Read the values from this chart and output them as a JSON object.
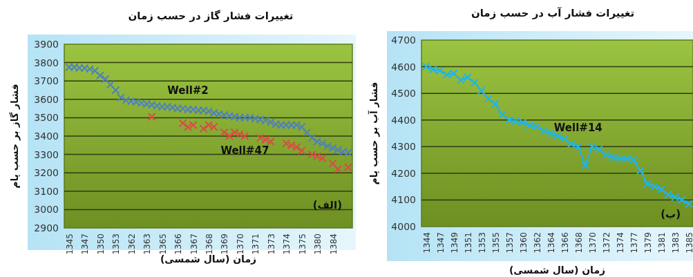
{
  "chart_data": [
    {
      "type": "scatter",
      "title": "تغییرات فشار گاز در حسب زمان",
      "xlabel": "زمان (سال شمسی)",
      "ylabel": "فشار گاز بر حسب پام",
      "categories": [
        "1345",
        null,
        null,
        "1347",
        null,
        null,
        "1350",
        null,
        null,
        "1353",
        null,
        null,
        "1362",
        null,
        null,
        "1363",
        null,
        null,
        "1365",
        null,
        null,
        "1366",
        null,
        null,
        "1367",
        null,
        null,
        "1368",
        null,
        null,
        "1369",
        null,
        null,
        "1370",
        null,
        null,
        "1371",
        null,
        null,
        "1373",
        null,
        null,
        "1374",
        null,
        null,
        "1375",
        null,
        null,
        "1380",
        null,
        null,
        "1384",
        null,
        null,
        null
      ],
      "ylim": [
        2900,
        3900
      ],
      "yticks": [
        2900,
        3000,
        3100,
        3200,
        3300,
        3400,
        3500,
        3600,
        3700,
        3800,
        3900
      ],
      "grid": "y",
      "series": [
        {
          "name": "Well#2",
          "color": "#4f81bd",
          "marker": "cross",
          "values": [
            3775,
            3775,
            3770,
            3770,
            3765,
            3755,
            3730,
            3710,
            3680,
            3650,
            3610,
            3595,
            3590,
            3585,
            3580,
            3575,
            3570,
            3565,
            3560,
            3560,
            3555,
            3550,
            3550,
            3545,
            3545,
            3540,
            3540,
            3535,
            3525,
            3520,
            3515,
            3510,
            3505,
            3500,
            3500,
            3500,
            3495,
            3490,
            3485,
            3475,
            3465,
            3460,
            3460,
            3460,
            3460,
            3450,
            3420,
            3390,
            3370,
            3360,
            3345,
            3335,
            3325,
            3315,
            3310
          ]
        },
        {
          "name": "Well#47",
          "color": "#e04848",
          "marker": "cross",
          "values": [
            null,
            null,
            null,
            null,
            null,
            null,
            null,
            null,
            null,
            null,
            null,
            null,
            null,
            null,
            null,
            null,
            3505,
            null,
            null,
            null,
            null,
            null,
            3470,
            3450,
            3460,
            null,
            3440,
            3460,
            3450,
            null,
            3420,
            3400,
            3420,
            3410,
            3400,
            null,
            null,
            3390,
            3380,
            3370,
            null,
            null,
            3360,
            3350,
            3340,
            3320,
            null,
            3300,
            3290,
            3280,
            null,
            3250,
            3220,
            null,
            3230
          ]
        }
      ],
      "annotations": [
        "(الف)"
      ]
    },
    {
      "type": "line",
      "title": "تغییرات فشار آب در حسب زمان",
      "xlabel": "زمان (سال شمسی)",
      "ylabel": "فشار آب بر حسب پام",
      "categories": [
        "1344",
        null,
        "1347",
        null,
        "1349",
        null,
        "1351",
        null,
        "1353",
        null,
        "1355",
        null,
        "1357",
        null,
        "1360",
        null,
        "1362",
        null,
        "1364",
        null,
        "1366",
        null,
        "1368",
        null,
        "1370",
        null,
        "1372",
        null,
        "1374",
        null,
        "1377",
        null,
        "1379",
        null,
        "1381",
        null,
        "1383",
        null,
        "1385"
      ],
      "ylim": [
        4000,
        4700
      ],
      "yticks": [
        4000,
        4100,
        4200,
        4300,
        4400,
        4500,
        4600,
        4700
      ],
      "grid": "y",
      "marker": "cross",
      "series": [
        {
          "name": "Well#14",
          "color": "#1fb4ec",
          "values": [
            4600,
            4590,
            4585,
            4570,
            4575,
            4550,
            4560,
            4540,
            4510,
            4480,
            4460,
            4420,
            4400,
            4395,
            4390,
            4380,
            4375,
            4360,
            4350,
            4340,
            4330,
            4310,
            4300,
            4230,
            4300,
            4290,
            4270,
            4260,
            4255,
            4255,
            4250,
            4210,
            4160,
            4150,
            4140,
            4120,
            4110,
            4100,
            4085
          ]
        }
      ],
      "annotations": [
        "(ب)"
      ]
    }
  ]
}
